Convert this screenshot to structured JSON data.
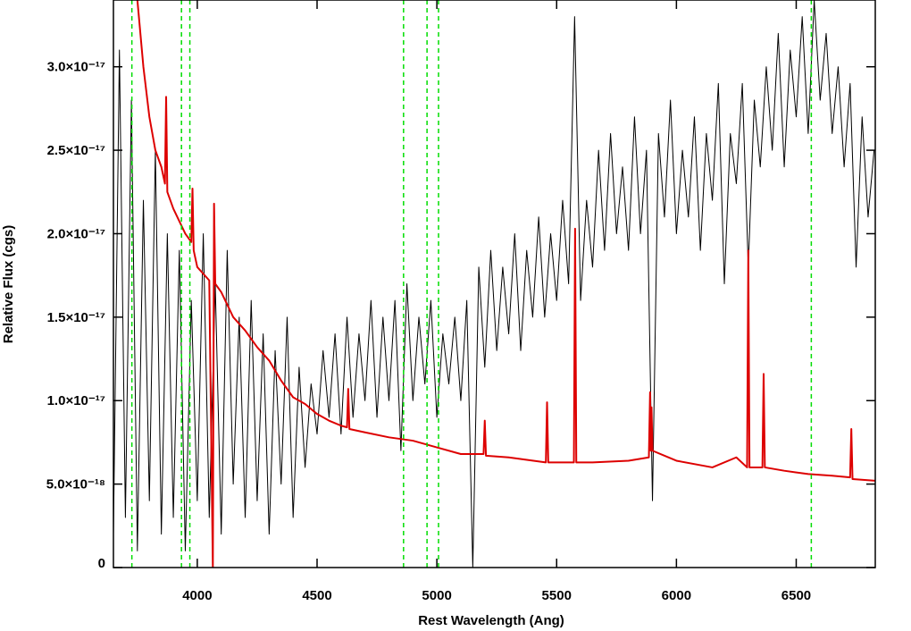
{
  "chart_data": {
    "type": "line",
    "xlabel": "Rest Wavelength (Ang)",
    "ylabel": "Relative Flux (cgs)",
    "xlim": [
      3650,
      6830
    ],
    "ylim": [
      0,
      3.4e-17
    ],
    "xticks": [
      4000,
      4500,
      5000,
      5500,
      6000,
      6500
    ],
    "yticks": [
      0,
      {
        "value": 5e-18,
        "label": "5.0×10⁻¹⁸"
      },
      {
        "value": 1e-17,
        "label": "1.0×10⁻¹⁷"
      },
      {
        "value": 1.5e-17,
        "label": "1.5×10⁻¹⁷"
      },
      {
        "value": 2e-17,
        "label": "2.0×10⁻¹⁷"
      },
      {
        "value": 2.5e-17,
        "label": "2.5×10⁻¹⁷"
      },
      {
        "value": 3e-17,
        "label": "3.0×10⁻¹⁷"
      }
    ],
    "vlines": {
      "color": "#00dd00",
      "x": [
        3727,
        3934,
        3969,
        4861,
        4959,
        5007,
        6563
      ]
    },
    "series": [
      {
        "color": "#000000",
        "width": 1,
        "x": [
          3650,
          3675,
          3700,
          3725,
          3750,
          3775,
          3800,
          3825,
          3850,
          3875,
          3900,
          3925,
          3950,
          3975,
          4000,
          4025,
          4050,
          4075,
          4100,
          4125,
          4150,
          4175,
          4200,
          4225,
          4250,
          4275,
          4300,
          4325,
          4350,
          4375,
          4400,
          4425,
          4450,
          4475,
          4500,
          4525,
          4550,
          4575,
          4600,
          4625,
          4650,
          4675,
          4700,
          4725,
          4750,
          4775,
          4800,
          4825,
          4850,
          4875,
          4900,
          4925,
          4950,
          4975,
          5000,
          5025,
          5050,
          5075,
          5100,
          5125,
          5150,
          5175,
          5200,
          5225,
          5250,
          5275,
          5300,
          5325,
          5350,
          5375,
          5400,
          5425,
          5450,
          5475,
          5500,
          5525,
          5550,
          5575,
          5600,
          5625,
          5650,
          5675,
          5700,
          5725,
          5750,
          5775,
          5800,
          5825,
          5850,
          5875,
          5900,
          5925,
          5950,
          5975,
          6000,
          6025,
          6050,
          6075,
          6100,
          6125,
          6150,
          6175,
          6200,
          6225,
          6250,
          6275,
          6300,
          6325,
          6350,
          6375,
          6400,
          6425,
          6450,
          6475,
          6500,
          6525,
          6550,
          6575,
          6600,
          6625,
          6650,
          6675,
          6700,
          6725,
          6750,
          6775,
          6800,
          6825
        ],
        "values": [
          2e-18,
          3.1e-17,
          3e-18,
          2.8e-17,
          1e-18,
          2.2e-17,
          4e-18,
          2.5e-17,
          2e-18,
          2e-17,
          3e-18,
          1.9e-17,
          1e-18,
          1.6e-17,
          4e-18,
          2e-17,
          3e-18,
          1.7e-17,
          2e-18,
          1.9e-17,
          5e-18,
          1.5e-17,
          3e-18,
          1.6e-17,
          4e-18,
          1.4e-17,
          2e-18,
          1.3e-17,
          5e-18,
          1.5e-17,
          3e-18,
          1.2e-17,
          6e-18,
          1.1e-17,
          8e-18,
          1.3e-17,
          9e-18,
          1.4e-17,
          8e-18,
          1.5e-17,
          9e-18,
          1.4e-17,
          1e-17,
          1.6e-17,
          9e-18,
          1.5e-17,
          1e-17,
          1.6e-17,
          7e-18,
          1.7e-17,
          1e-17,
          1.5e-17,
          1.1e-17,
          1.6e-17,
          9e-18,
          1.4e-17,
          1.1e-17,
          1.5e-17,
          1e-17,
          1.6e-17,
          0,
          1.8e-17,
          1.2e-17,
          1.9e-17,
          1.3e-17,
          1.8e-17,
          1.4e-17,
          2e-17,
          1.3e-17,
          1.9e-17,
          1.5e-17,
          2.1e-17,
          1.5e-17,
          2e-17,
          1.6e-17,
          2.2e-17,
          1.7e-17,
          3.3e-17,
          1.6e-17,
          2.2e-17,
          1.8e-17,
          2.5e-17,
          1.9e-17,
          2.6e-17,
          2e-17,
          2.4e-17,
          1.9e-17,
          2.7e-17,
          2e-17,
          2.5e-17,
          4e-18,
          2.6e-17,
          2.1e-17,
          2.8e-17,
          2e-17,
          2.5e-17,
          2.1e-17,
          2.7e-17,
          1.9e-17,
          2.6e-17,
          2.2e-17,
          2.9e-17,
          1.7e-17,
          2.6e-17,
          2.3e-17,
          2.9e-17,
          1.8e-17,
          2.8e-17,
          2.4e-17,
          3e-17,
          2.5e-17,
          3.2e-17,
          2.4e-17,
          3.1e-17,
          2.7e-17,
          3.3e-17,
          2.6e-17,
          3.4e-17,
          2.8e-17,
          3.2e-17,
          2.6e-17,
          3e-17,
          2.4e-17,
          2.9e-17,
          1.8e-17,
          2.7e-17,
          2.1e-17,
          2.5e-17
        ]
      },
      {
        "color": "#dd0000",
        "width": 2,
        "x": [
          3750,
          3775,
          3800,
          3825,
          3850,
          3865,
          3870,
          3875,
          3900,
          3950,
          3975,
          3980,
          3985,
          4000,
          4050,
          4065,
          4070,
          4075,
          4100,
          4150,
          4200,
          4250,
          4300,
          4350,
          4400,
          4450,
          4500,
          4550,
          4600,
          4625,
          4630,
          4635,
          4700,
          4800,
          4900,
          5000,
          5100,
          5195,
          5200,
          5205,
          5300,
          5455,
          5460,
          5465,
          5572,
          5577,
          5582,
          5650,
          5800,
          5885,
          5890,
          5893,
          5896,
          5900,
          6000,
          6150,
          6250,
          6295,
          6300,
          6305,
          6359,
          6364,
          6369,
          6450,
          6550,
          6650,
          6725,
          6730,
          6735,
          6830
        ],
        "values": [
          3.4e-17,
          3e-17,
          2.7e-17,
          2.5e-17,
          2.4e-17,
          2.3e-17,
          2.82e-17,
          2.25e-17,
          2.15e-17,
          2e-17,
          1.95e-17,
          2.27e-17,
          1.9e-17,
          1.8e-17,
          1.72e-17,
          0,
          2.18e-17,
          1.7e-17,
          1.65e-17,
          1.5e-17,
          1.42e-17,
          1.32e-17,
          1.24e-17,
          1.12e-17,
          1.02e-17,
          9.8e-18,
          9.2e-18,
          8.8e-18,
          8.5e-18,
          8.4e-18,
          1.07e-17,
          8.3e-18,
          8.1e-18,
          7.8e-18,
          7.6e-18,
          7.2e-18,
          6.8e-18,
          6.8e-18,
          8.8e-18,
          6.7e-18,
          6.6e-18,
          6.3e-18,
          9.9e-18,
          6.3e-18,
          6.3e-18,
          2.03e-17,
          6.3e-18,
          6.3e-18,
          6.4e-18,
          6.6e-18,
          1.05e-17,
          7e-18,
          9.6e-18,
          7e-18,
          6.4e-18,
          6e-18,
          6.6e-18,
          6e-18,
          1.9e-17,
          6e-18,
          6e-18,
          1.16e-17,
          6e-18,
          5.8e-18,
          5.6e-18,
          5.5e-18,
          5.4e-18,
          8.3e-18,
          5.3e-18,
          5.2e-18
        ]
      }
    ]
  }
}
